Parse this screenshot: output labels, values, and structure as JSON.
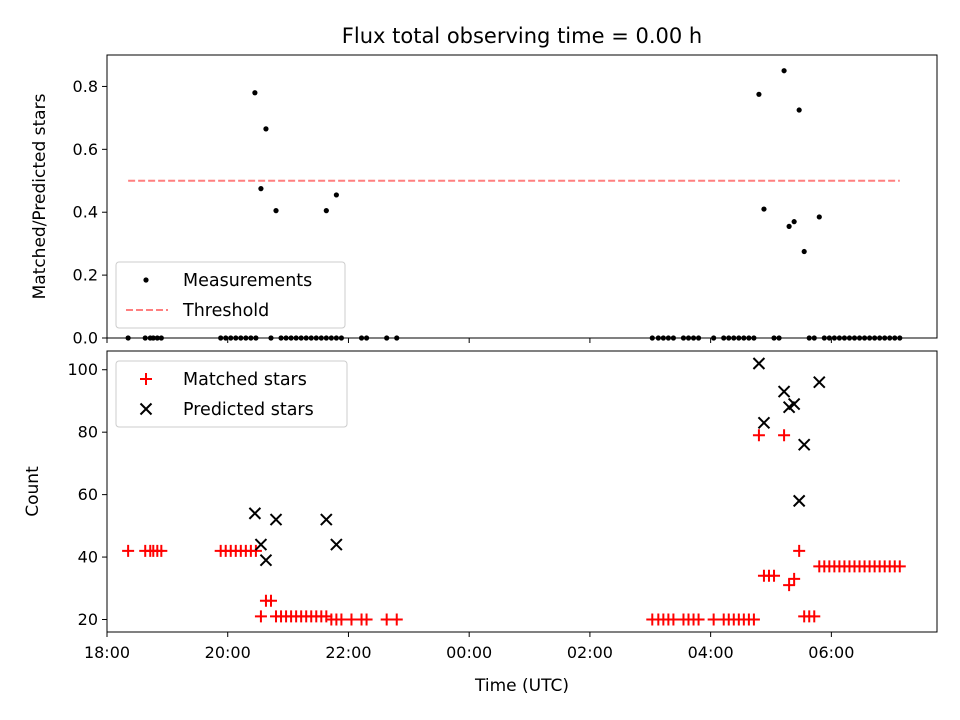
{
  "chart_data": {
    "type": "scatter",
    "title": "Flux total observing time = 0.00 h",
    "xlabel": "Time (UTC)",
    "xlim": [
      "18:00",
      "07:45"
    ],
    "x_ticks": [
      "18:00",
      "20:00",
      "22:00",
      "00:00",
      "02:00",
      "04:00",
      "06:00"
    ],
    "panels": [
      {
        "ylabel": "Matched/Predicted stars",
        "ylim": [
          0,
          0.9
        ],
        "y_ticks": [
          "0.0",
          "0.2",
          "0.4",
          "0.6",
          "0.8"
        ],
        "legend_position": "lower left",
        "series": [
          {
            "name": "Measurements",
            "marker": "dot",
            "color": "#000000",
            "points": [
              [
                "18:21",
                0
              ],
              [
                "18:38",
                0
              ],
              [
                "18:43",
                0
              ],
              [
                "18:46",
                0
              ],
              [
                "18:50",
                0
              ],
              [
                "18:54",
                0
              ],
              [
                "19:53",
                0
              ],
              [
                "19:58",
                0
              ],
              [
                "20:03",
                0
              ],
              [
                "20:08",
                0
              ],
              [
                "20:13",
                0
              ],
              [
                "20:18",
                0
              ],
              [
                "20:23",
                0
              ],
              [
                "20:28",
                0
              ],
              [
                "20:27",
                0.78
              ],
              [
                "20:33",
                0.475
              ],
              [
                "20:38",
                0.665
              ],
              [
                "20:43",
                0
              ],
              [
                "20:48",
                0.405
              ],
              [
                "20:53",
                0
              ],
              [
                "20:58",
                0
              ],
              [
                "21:03",
                0
              ],
              [
                "21:08",
                0
              ],
              [
                "21:13",
                0
              ],
              [
                "21:18",
                0
              ],
              [
                "21:23",
                0
              ],
              [
                "21:28",
                0
              ],
              [
                "21:33",
                0
              ],
              [
                "21:38",
                0
              ],
              [
                "21:38",
                0.405
              ],
              [
                "21:43",
                0
              ],
              [
                "21:48",
                0
              ],
              [
                "21:53",
                0
              ],
              [
                "21:48",
                0.455
              ],
              [
                "22:13",
                0
              ],
              [
                "22:18",
                0
              ],
              [
                "22:38",
                0
              ],
              [
                "22:48",
                0
              ],
              [
                "03:02",
                0
              ],
              [
                "03:08",
                0
              ],
              [
                "03:13",
                0
              ],
              [
                "03:18",
                0
              ],
              [
                "03:23",
                0
              ],
              [
                "03:33",
                0
              ],
              [
                "03:38",
                0
              ],
              [
                "03:43",
                0
              ],
              [
                "03:48",
                0
              ],
              [
                "04:03",
                0
              ],
              [
                "04:13",
                0
              ],
              [
                "04:18",
                0
              ],
              [
                "04:23",
                0
              ],
              [
                "04:28",
                0
              ],
              [
                "04:33",
                0
              ],
              [
                "04:38",
                0
              ],
              [
                "04:43",
                0
              ],
              [
                "04:48",
                0.775
              ],
              [
                "04:53",
                0.41
              ],
              [
                "05:03",
                0
              ],
              [
                "05:08",
                0
              ],
              [
                "05:13",
                0.85
              ],
              [
                "05:18",
                0.355
              ],
              [
                "05:23",
                0.37
              ],
              [
                "05:28",
                0.725
              ],
              [
                "05:33",
                0.275
              ],
              [
                "05:38",
                0
              ],
              [
                "05:43",
                0
              ],
              [
                "05:48",
                0.385
              ],
              [
                "05:53",
                0
              ],
              [
                "05:58",
                0
              ],
              [
                "06:03",
                0
              ],
              [
                "06:08",
                0
              ],
              [
                "06:13",
                0
              ],
              [
                "06:18",
                0
              ],
              [
                "06:23",
                0
              ],
              [
                "06:28",
                0
              ],
              [
                "06:33",
                0
              ],
              [
                "06:38",
                0
              ],
              [
                "06:43",
                0
              ],
              [
                "06:48",
                0
              ],
              [
                "06:53",
                0
              ],
              [
                "06:58",
                0
              ],
              [
                "07:03",
                0
              ],
              [
                "07:08",
                0
              ]
            ]
          },
          {
            "name": "Threshold",
            "marker": "dashed-line",
            "color": "#ff7f7f",
            "points": [
              [
                "18:21",
                0.5
              ],
              [
                "07:08",
                0.5
              ]
            ]
          }
        ]
      },
      {
        "ylabel": "Count",
        "ylim": [
          16,
          106
        ],
        "y_ticks": [
          "20",
          "40",
          "60",
          "80",
          "100"
        ],
        "legend_position": "upper left",
        "series": [
          {
            "name": "Matched stars",
            "marker": "plus",
            "color": "#ff0000",
            "points": [
              [
                "18:21",
                42
              ],
              [
                "18:38",
                42
              ],
              [
                "18:43",
                42
              ],
              [
                "18:46",
                42
              ],
              [
                "18:50",
                42
              ],
              [
                "18:54",
                42
              ],
              [
                "19:53",
                42
              ],
              [
                "19:58",
                42
              ],
              [
                "20:03",
                42
              ],
              [
                "20:08",
                42
              ],
              [
                "20:13",
                42
              ],
              [
                "20:18",
                42
              ],
              [
                "20:23",
                42
              ],
              [
                "20:28",
                42
              ],
              [
                "20:33",
                21
              ],
              [
                "20:38",
                26
              ],
              [
                "20:43",
                26
              ],
              [
                "20:48",
                21
              ],
              [
                "20:53",
                21
              ],
              [
                "20:58",
                21
              ],
              [
                "21:03",
                21
              ],
              [
                "21:08",
                21
              ],
              [
                "21:13",
                21
              ],
              [
                "21:18",
                21
              ],
              [
                "21:23",
                21
              ],
              [
                "21:28",
                21
              ],
              [
                "21:33",
                21
              ],
              [
                "21:38",
                21
              ],
              [
                "21:43",
                20
              ],
              [
                "21:48",
                20
              ],
              [
                "21:53",
                20
              ],
              [
                "22:03",
                20
              ],
              [
                "22:13",
                20
              ],
              [
                "22:18",
                20
              ],
              [
                "22:38",
                20
              ],
              [
                "22:48",
                20
              ],
              [
                "03:02",
                20
              ],
              [
                "03:08",
                20
              ],
              [
                "03:13",
                20
              ],
              [
                "03:18",
                20
              ],
              [
                "03:23",
                20
              ],
              [
                "03:33",
                20
              ],
              [
                "03:38",
                20
              ],
              [
                "03:43",
                20
              ],
              [
                "03:48",
                20
              ],
              [
                "04:03",
                20
              ],
              [
                "04:13",
                20
              ],
              [
                "04:18",
                20
              ],
              [
                "04:23",
                20
              ],
              [
                "04:28",
                20
              ],
              [
                "04:33",
                20
              ],
              [
                "04:38",
                20
              ],
              [
                "04:43",
                20
              ],
              [
                "04:48",
                79
              ],
              [
                "04:53",
                34
              ],
              [
                "04:58",
                34
              ],
              [
                "05:03",
                34
              ],
              [
                "05:13",
                79
              ],
              [
                "05:18",
                31
              ],
              [
                "05:23",
                33
              ],
              [
                "05:28",
                42
              ],
              [
                "05:33",
                21
              ],
              [
                "05:38",
                21
              ],
              [
                "05:43",
                21
              ],
              [
                "05:48",
                37
              ],
              [
                "05:53",
                37
              ],
              [
                "05:58",
                37
              ],
              [
                "06:03",
                37
              ],
              [
                "06:08",
                37
              ],
              [
                "06:13",
                37
              ],
              [
                "06:18",
                37
              ],
              [
                "06:23",
                37
              ],
              [
                "06:28",
                37
              ],
              [
                "06:33",
                37
              ],
              [
                "06:38",
                37
              ],
              [
                "06:43",
                37
              ],
              [
                "06:48",
                37
              ],
              [
                "06:53",
                37
              ],
              [
                "06:58",
                37
              ],
              [
                "07:03",
                37
              ],
              [
                "07:08",
                37
              ]
            ]
          },
          {
            "name": "Predicted stars",
            "marker": "x",
            "color": "#000000",
            "points": [
              [
                "20:27",
                54
              ],
              [
                "20:33",
                44
              ],
              [
                "20:38",
                39
              ],
              [
                "20:48",
                52
              ],
              [
                "21:38",
                52
              ],
              [
                "21:48",
                44
              ],
              [
                "04:48",
                102
              ],
              [
                "04:53",
                83
              ],
              [
                "05:13",
                93
              ],
              [
                "05:18",
                88
              ],
              [
                "05:23",
                89
              ],
              [
                "05:28",
                58
              ],
              [
                "05:33",
                76
              ],
              [
                "05:48",
                96
              ]
            ]
          }
        ]
      }
    ]
  }
}
